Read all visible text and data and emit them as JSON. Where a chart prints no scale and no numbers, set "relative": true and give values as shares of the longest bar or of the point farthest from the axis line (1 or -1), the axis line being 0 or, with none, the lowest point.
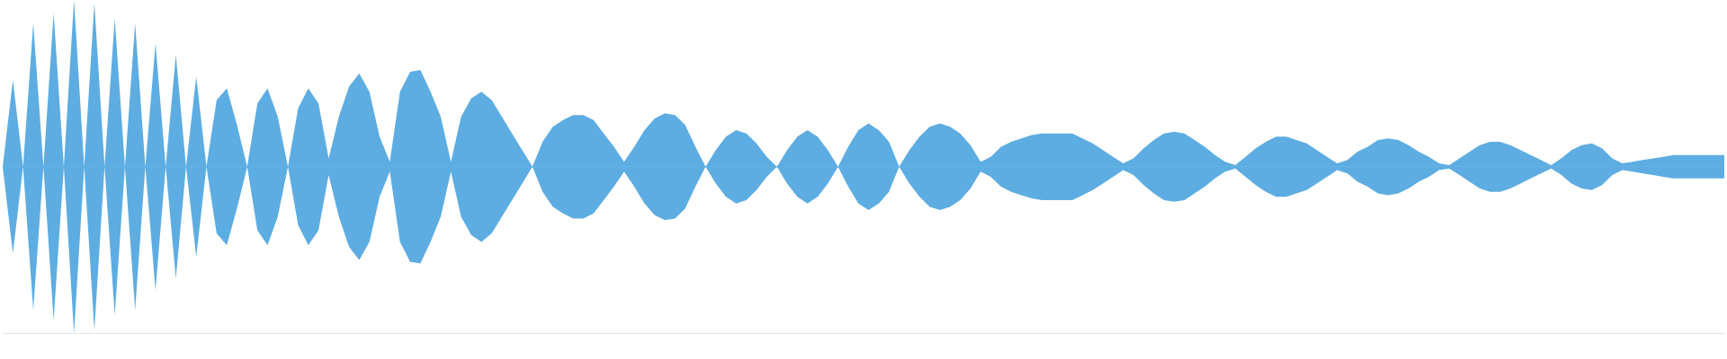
{
  "chart_data": {
    "type": "area",
    "relative": true,
    "legend": false,
    "ref_lines": [
      {
        "axis": "y",
        "value": 0,
        "color": "#5dade2"
      }
    ],
    "categories": [
      null,
      null,
      null,
      null,
      null,
      null,
      null,
      null,
      null,
      null,
      null,
      null,
      null,
      null,
      null,
      null,
      null,
      null,
      null,
      null,
      null,
      null,
      null,
      null,
      null,
      null,
      null,
      null,
      null,
      null,
      null,
      null,
      null,
      null,
      null,
      null,
      null,
      null,
      null,
      null,
      null,
      null,
      null,
      null,
      null,
      null,
      null,
      null,
      null,
      null,
      null,
      null,
      null,
      null,
      null,
      null,
      null,
      null,
      null,
      null,
      null,
      null,
      null,
      null,
      null,
      null,
      null,
      null,
      null,
      null,
      null,
      null,
      null,
      null,
      null,
      null,
      null,
      null,
      null,
      null,
      null,
      null,
      null,
      null,
      null,
      null,
      null,
      null,
      null,
      null,
      null,
      null,
      null,
      null,
      null,
      null,
      null,
      null,
      null,
      null,
      null,
      null,
      null,
      null,
      null,
      null,
      null,
      null,
      null,
      null,
      null,
      null,
      null,
      null,
      null,
      null,
      null,
      null,
      null,
      null,
      null,
      null,
      null,
      null,
      null,
      null,
      null,
      null,
      null,
      null,
      null,
      null,
      null,
      null,
      null,
      null,
      null,
      null,
      null,
      null,
      null,
      null,
      null,
      null,
      null,
      null,
      null,
      null,
      null,
      null,
      null,
      null,
      null,
      null,
      null,
      null,
      null,
      null,
      null,
      null,
      null,
      null,
      null,
      null,
      null,
      null,
      null,
      null,
      null,
      null
    ],
    "series": [
      {
        "color": "#5dade2",
        "values": [
          0,
          0.52,
          0,
          0.86,
          0,
          0.92,
          0,
          1,
          0,
          0.98,
          0,
          0.89,
          0,
          0.86,
          0,
          0.74,
          0,
          0.67,
          0,
          0.54,
          0,
          0.4,
          0.47,
          0.25,
          0,
          0.38,
          0.47,
          0.3,
          0,
          0.35,
          0.47,
          0.38,
          0.05,
          0.3,
          0.48,
          0.56,
          0.45,
          0.18,
          0.03,
          0.45,
          0.57,
          0.58,
          0.45,
          0.3,
          0.03,
          0.3,
          0.41,
          0.45,
          0.4,
          0.3,
          0.2,
          0.1,
          0,
          0.15,
          0.24,
          0.28,
          0.31,
          0.31,
          0.28,
          0.2,
          0.12,
          0.03,
          0.12,
          0.22,
          0.29,
          0.32,
          0.31,
          0.25,
          0.12,
          0,
          0.1,
          0.18,
          0.22,
          0.2,
          0.14,
          0.06,
          0,
          0.1,
          0.18,
          0.22,
          0.18,
          0.1,
          0,
          0.12,
          0.22,
          0.26,
          0.22,
          0.15,
          0,
          0.1,
          0.18,
          0.24,
          0.26,
          0.24,
          0.2,
          0.13,
          0.03,
          0.06,
          0.12,
          0.15,
          0.17,
          0.19,
          0.2,
          0.2,
          0.2,
          0.2,
          0.17,
          0.14,
          0.1,
          0.06,
          0.02,
          0.05,
          0.11,
          0.16,
          0.2,
          0.21,
          0.2,
          0.16,
          0.12,
          0.07,
          0.03,
          0.01,
          0.06,
          0.11,
          0.15,
          0.18,
          0.18,
          0.16,
          0.14,
          0.1,
          0.06,
          0.02,
          0.04,
          0.09,
          0.12,
          0.16,
          0.17,
          0.16,
          0.13,
          0.09,
          0.06,
          0.02,
          0.01,
          0.05,
          0.09,
          0.13,
          0.15,
          0.15,
          0.13,
          0.1,
          0.07,
          0.04,
          0.01,
          0.05,
          0.1,
          0.13,
          0.14,
          0.11,
          0.05,
          0.02,
          0.03,
          0.04,
          0.05,
          0.06,
          0.07,
          0.07,
          0.07,
          0.07,
          0.07,
          0.07
        ]
      },
      {
        "color": "#5dade2",
        "values": [
          0,
          -0.52,
          0,
          -0.86,
          0,
          -0.92,
          0,
          -1,
          0,
          -0.98,
          0,
          -0.89,
          0,
          -0.86,
          0,
          -0.74,
          0,
          -0.67,
          0,
          -0.54,
          0,
          -0.4,
          -0.47,
          -0.25,
          0,
          -0.38,
          -0.47,
          -0.3,
          0,
          -0.35,
          -0.47,
          -0.38,
          -0.05,
          -0.3,
          -0.48,
          -0.56,
          -0.45,
          -0.18,
          -0.03,
          -0.45,
          -0.57,
          -0.58,
          -0.45,
          -0.3,
          -0.03,
          -0.3,
          -0.41,
          -0.45,
          -0.4,
          -0.3,
          -0.2,
          -0.1,
          0,
          -0.15,
          -0.24,
          -0.28,
          -0.31,
          -0.31,
          -0.28,
          -0.2,
          -0.12,
          -0.03,
          -0.12,
          -0.22,
          -0.29,
          -0.32,
          -0.31,
          -0.25,
          -0.12,
          0,
          -0.1,
          -0.18,
          -0.22,
          -0.2,
          -0.14,
          -0.06,
          0,
          -0.1,
          -0.18,
          -0.22,
          -0.18,
          -0.1,
          0,
          -0.12,
          -0.22,
          -0.26,
          -0.22,
          -0.15,
          0,
          -0.1,
          -0.18,
          -0.24,
          -0.26,
          -0.24,
          -0.2,
          -0.13,
          -0.03,
          -0.06,
          -0.12,
          -0.15,
          -0.17,
          -0.19,
          -0.2,
          -0.2,
          -0.2,
          -0.2,
          -0.17,
          -0.14,
          -0.1,
          -0.06,
          -0.02,
          -0.05,
          -0.11,
          -0.16,
          -0.2,
          -0.21,
          -0.2,
          -0.16,
          -0.12,
          -0.07,
          -0.03,
          -0.01,
          -0.06,
          -0.11,
          -0.15,
          -0.18,
          -0.18,
          -0.16,
          -0.14,
          -0.1,
          -0.06,
          -0.02,
          -0.04,
          -0.09,
          -0.12,
          -0.16,
          -0.17,
          -0.16,
          -0.13,
          -0.09,
          -0.06,
          -0.02,
          -0.01,
          -0.05,
          -0.09,
          -0.13,
          -0.15,
          -0.15,
          -0.13,
          -0.1,
          -0.07,
          -0.04,
          -0.01,
          -0.05,
          -0.1,
          -0.13,
          -0.14,
          -0.11,
          -0.05,
          -0.02,
          -0.03,
          -0.04,
          -0.05,
          -0.06,
          -0.07,
          -0.07,
          -0.07,
          -0.07,
          -0.07,
          -0.07
        ]
      }
    ]
  }
}
